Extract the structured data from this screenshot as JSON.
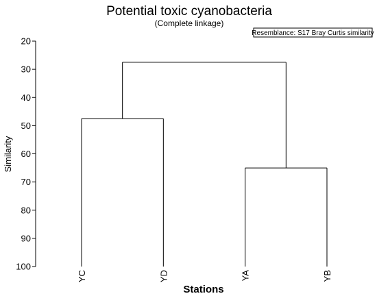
{
  "chart_data": {
    "type": "dendrogram",
    "title": "Potential toxic cyanobacteria",
    "subtitle": "(Complete linkage)",
    "legend": "Resemblance: S17 Bray Curtis similarity",
    "legend_position": "top-right",
    "xlabel": "Stations",
    "ylabel": "Similarity",
    "ylim": [
      20,
      100
    ],
    "y_ticks": [
      "20",
      "30",
      "40",
      "50",
      "60",
      "70",
      "80",
      "90",
      "100"
    ],
    "y_inverted": true,
    "leaves": [
      "YC",
      "YD",
      "YA",
      "YB"
    ],
    "merges": [
      {
        "left": "YC",
        "right": "YD",
        "similarity": 47.5
      },
      {
        "left": "YA",
        "right": "YB",
        "similarity": 65
      },
      {
        "left": "YC+YD",
        "right": "YA+YB",
        "similarity": 27.5
      }
    ]
  }
}
